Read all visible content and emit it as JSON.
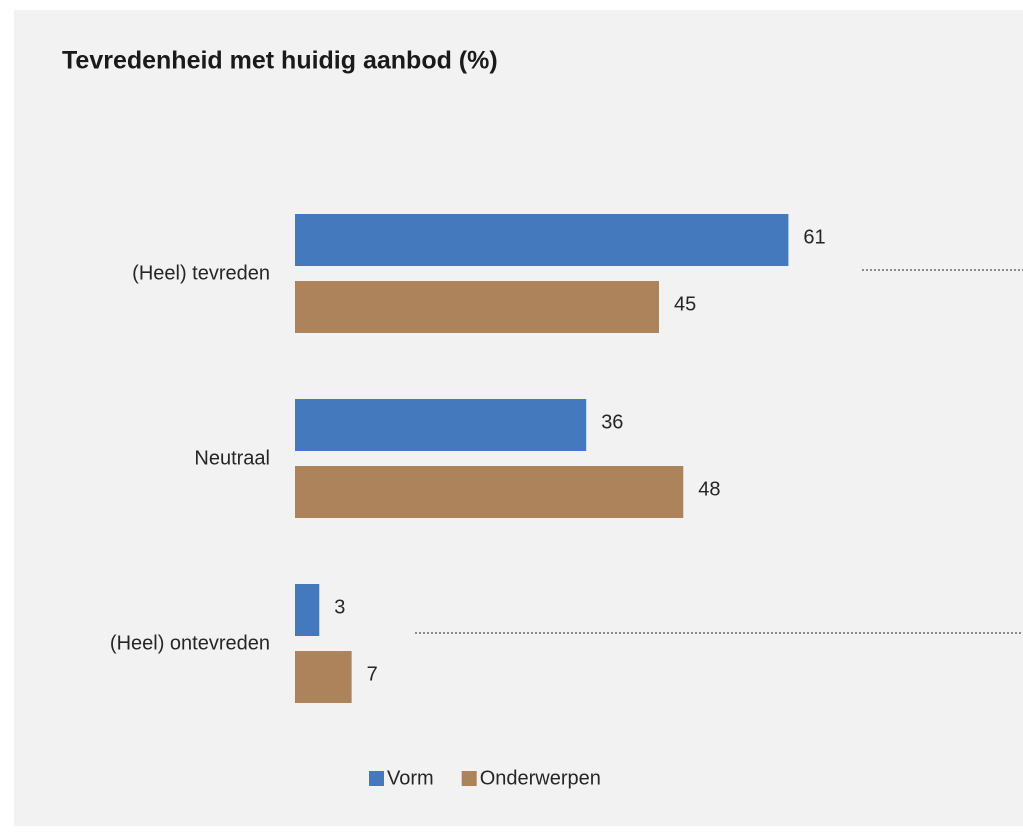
{
  "chart_data": {
    "type": "hbar",
    "title": "Tevredenheid met huidig aanbod (%)",
    "categories": [
      "(Heel) tevreden",
      "Neutraal",
      "(Heel) ontevreden"
    ],
    "series": [
      {
        "name": "Vorm",
        "color": "#4579bd",
        "values": [
          61,
          36,
          3
        ]
      },
      {
        "name": "Onderwerpen",
        "color": "#ad835b",
        "values": [
          45,
          48,
          7
        ]
      }
    ],
    "xlim": [
      0,
      90
    ],
    "legend": "bottom"
  }
}
